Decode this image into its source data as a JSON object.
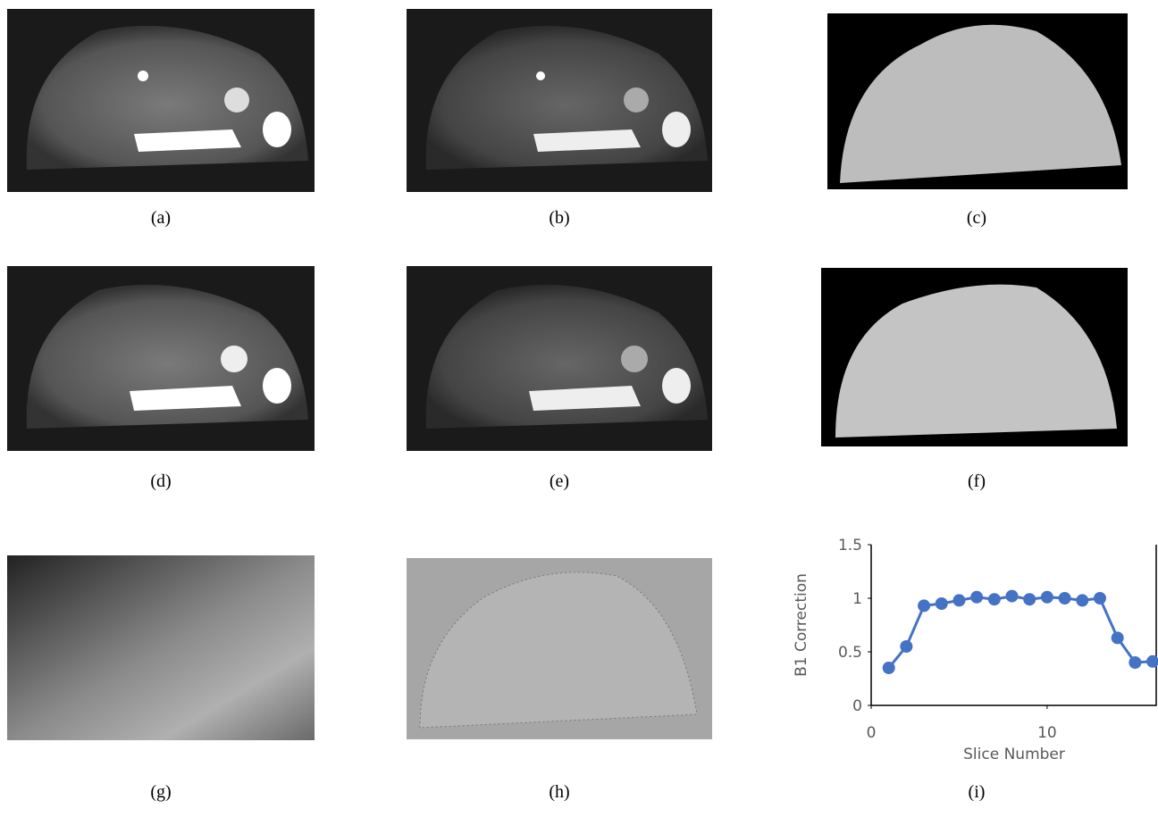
{
  "panels": [
    {
      "label": "(a)"
    },
    {
      "label": "(b)"
    },
    {
      "label": "(c)"
    },
    {
      "label": "(d)"
    },
    {
      "label": "(e)"
    },
    {
      "label": "(f)"
    },
    {
      "label": "(g)"
    },
    {
      "label": "(h)"
    },
    {
      "label": "(i)"
    }
  ],
  "chart_data": {
    "type": "line",
    "x_label": "Slice Number",
    "y_label": "B1 Correction",
    "x": [
      1,
      2,
      3,
      4,
      5,
      6,
      7,
      8,
      9,
      10,
      11,
      12,
      13,
      14,
      15,
      16
    ],
    "series": [
      {
        "name": "B1 Correction",
        "color": "#4472c4",
        "values": [
          0.35,
          0.55,
          0.93,
          0.95,
          0.98,
          1.01,
          0.99,
          1.02,
          0.99,
          1.01,
          1.0,
          0.98,
          1.0,
          0.63,
          0.4,
          0.41
        ]
      }
    ],
    "xlim": [
      0,
      16.2
    ],
    "xticks": [
      0,
      10
    ],
    "ylim": [
      0,
      1.5
    ],
    "yticks": [
      0,
      0.5,
      1,
      1.5
    ],
    "grid": false
  }
}
